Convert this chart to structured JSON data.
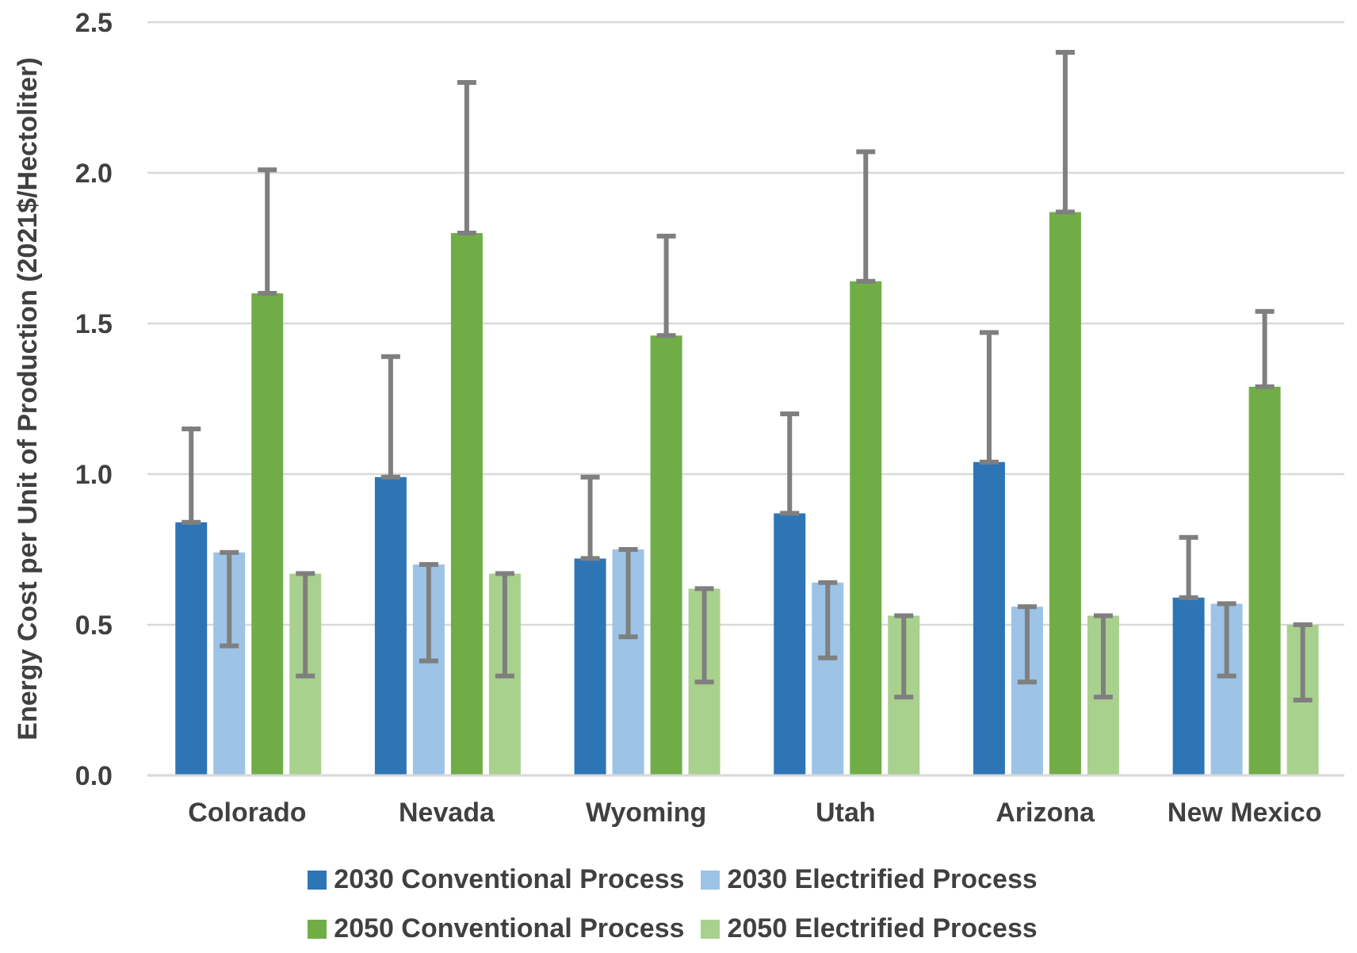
{
  "chart_data": {
    "type": "bar",
    "ylabel": "Energy Cost per Unit of Production (2021$/Hectoliter)",
    "categories": [
      "Colorado",
      "Nevada",
      "Wyoming",
      "Utah",
      "Arizona",
      "New Mexico"
    ],
    "series": [
      {
        "name": "2030 Conventional Process",
        "color": "#2e75b6",
        "values": [
          0.84,
          0.99,
          0.72,
          0.87,
          1.04,
          0.59
        ],
        "errors": [
          [
            0.84,
            1.15
          ],
          [
            0.99,
            1.39
          ],
          [
            0.72,
            0.99
          ],
          [
            0.87,
            1.2
          ],
          [
            1.04,
            1.47
          ],
          [
            0.59,
            0.79
          ]
        ]
      },
      {
        "name": "2030 Electrified Process",
        "color": "#9dc3e6",
        "values": [
          0.74,
          0.7,
          0.75,
          0.64,
          0.56,
          0.57
        ],
        "errors": [
          [
            0.43,
            0.74
          ],
          [
            0.38,
            0.7
          ],
          [
            0.46,
            0.75
          ],
          [
            0.39,
            0.64
          ],
          [
            0.31,
            0.56
          ],
          [
            0.33,
            0.57
          ]
        ]
      },
      {
        "name": "2050 Conventional Process",
        "color": "#70ad47",
        "values": [
          1.6,
          1.8,
          1.46,
          1.64,
          1.87,
          1.29
        ],
        "errors": [
          [
            1.6,
            2.01
          ],
          [
            1.8,
            2.3
          ],
          [
            1.46,
            1.79
          ],
          [
            1.64,
            2.07
          ],
          [
            1.87,
            2.4
          ],
          [
            1.29,
            1.54
          ]
        ]
      },
      {
        "name": "2050 Electrified Process",
        "color": "#a9d18e",
        "values": [
          0.67,
          0.67,
          0.62,
          0.53,
          0.53,
          0.5
        ],
        "errors": [
          [
            0.33,
            0.67
          ],
          [
            0.33,
            0.67
          ],
          [
            0.31,
            0.62
          ],
          [
            0.26,
            0.53
          ],
          [
            0.26,
            0.53
          ],
          [
            0.25,
            0.5
          ]
        ]
      }
    ],
    "ylim": [
      0,
      2.5
    ],
    "yticks": [
      {
        "value": 0,
        "label": "0.0"
      },
      0.5,
      {
        "value": 1,
        "label": "1.0"
      },
      1.5,
      {
        "value": 2,
        "label": "2.0"
      },
      2.5
    ],
    "grid": "y",
    "legend": "bottom"
  }
}
